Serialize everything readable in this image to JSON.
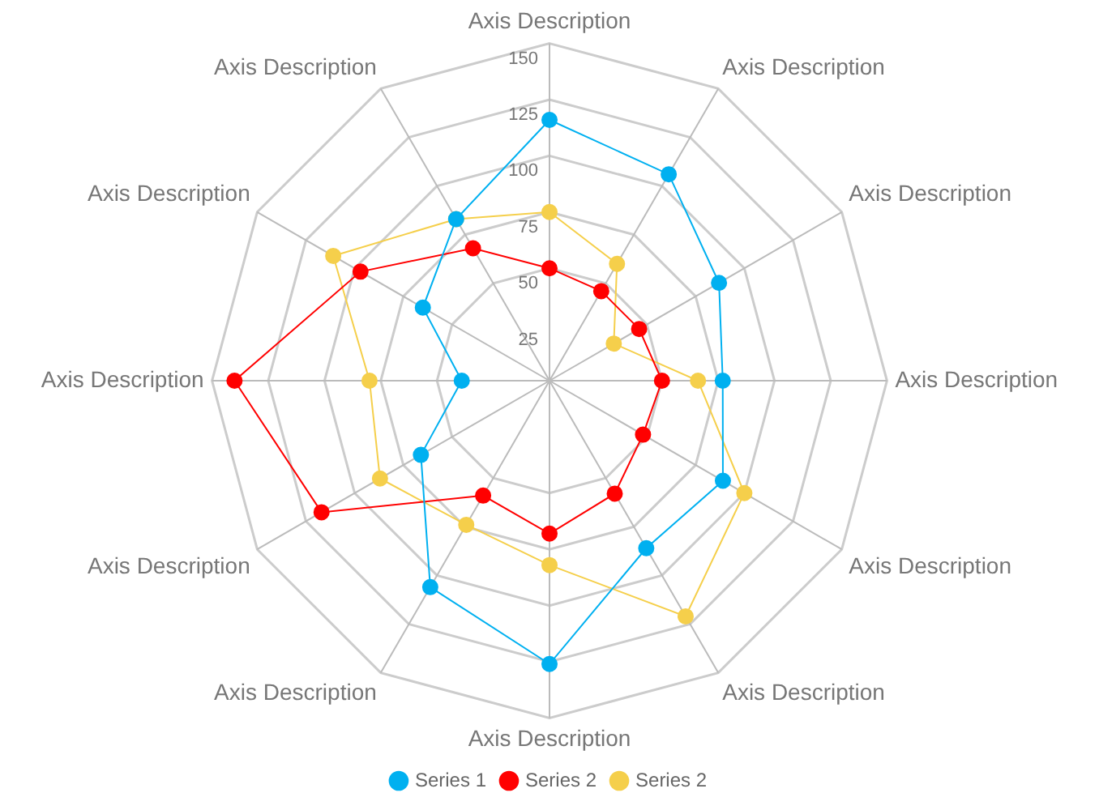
{
  "chart_data": {
    "type": "radar",
    "categories": [
      "Axis Description",
      "Axis Description",
      "Axis Description",
      "Axis Description",
      "Axis Description",
      "Axis Description",
      "Axis Description",
      "Axis Description",
      "Axis Description",
      "Axis Description",
      "Axis Description",
      "Axis Description"
    ],
    "series": [
      {
        "name": "Series 1",
        "color": "#00b0f0",
        "values": [
          116,
          106,
          87,
          77,
          89,
          86,
          126,
          106,
          66,
          39,
          65,
          83
        ]
      },
      {
        "name": "Series 2",
        "color": "#ff0000",
        "values": [
          50,
          46,
          46,
          50,
          48,
          58,
          68,
          59,
          117,
          140,
          97,
          68
        ]
      },
      {
        "name": "Series 2",
        "color": "#f5cf4b",
        "values": [
          75,
          60,
          33,
          66,
          100,
          121,
          82,
          74,
          87,
          80,
          111,
          83
        ]
      }
    ],
    "ylim": [
      0,
      150
    ],
    "yticks": [
      25,
      50,
      75,
      100,
      125,
      150
    ],
    "grid": true,
    "legend": "bottom",
    "marker": "circle",
    "line_style": "solid"
  }
}
